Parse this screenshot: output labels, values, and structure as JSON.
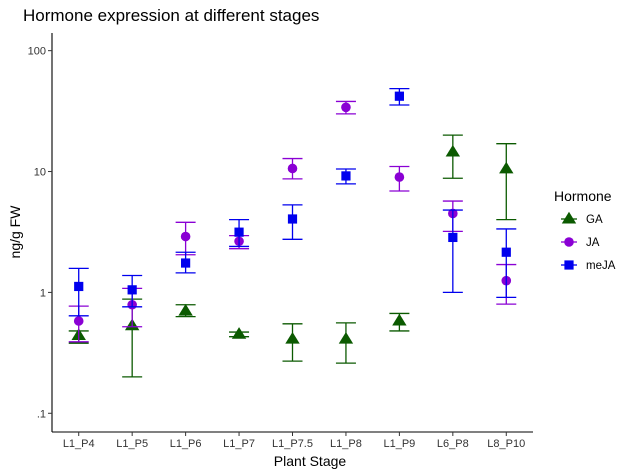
{
  "chart_data": {
    "type": "scatter",
    "title": "Hormone expression at different stages",
    "xlabel": "Plant Stage",
    "ylabel": "ng/g FW",
    "yscale": "log10",
    "ylim": [
      0.07,
      140
    ],
    "yticks": [
      0.1,
      1,
      10,
      100
    ],
    "ytick_labels": [
      ".1",
      "1",
      "10",
      "100"
    ],
    "grid": false,
    "categories": [
      "L1_P4",
      "L1_P5",
      "L1_P6",
      "L1_P7",
      "L1_P7.5",
      "L1_P8",
      "L1_P9",
      "L6_P8",
      "L8_P10"
    ],
    "legend": {
      "title": "Hormone",
      "position": "right"
    },
    "series": [
      {
        "name": "GA",
        "color": "#0b5a00",
        "marker": "triangle",
        "values": [
          0.44,
          0.53,
          0.7,
          0.45,
          0.41,
          0.41,
          0.58,
          14.5,
          10.5
        ],
        "lower": [
          0.38,
          0.2,
          0.63,
          0.43,
          0.27,
          0.26,
          0.48,
          8.8,
          4.0
        ],
        "upper": [
          0.48,
          0.88,
          0.79,
          0.47,
          0.55,
          0.56,
          0.67,
          20.0,
          17.0
        ]
      },
      {
        "name": "JA",
        "color": "#8a00d4",
        "marker": "circle",
        "values": [
          0.58,
          0.79,
          2.9,
          2.65,
          10.6,
          34.0,
          9.0,
          4.5,
          1.25
        ],
        "lower": [
          0.39,
          0.52,
          2.05,
          2.3,
          8.7,
          30.0,
          6.9,
          3.2,
          0.8
        ],
        "upper": [
          0.77,
          1.08,
          3.8,
          2.95,
          12.8,
          38.0,
          11.0,
          5.7,
          1.7
        ]
      },
      {
        "name": "meJA",
        "color": "#0000ee",
        "marker": "square",
        "values": [
          1.12,
          1.05,
          1.75,
          3.15,
          4.05,
          9.2,
          42.0,
          2.85,
          2.15
        ],
        "lower": [
          0.64,
          0.76,
          1.45,
          2.4,
          2.75,
          7.9,
          35.5,
          1.0,
          0.91
        ],
        "upper": [
          1.58,
          1.38,
          2.15,
          4.0,
          5.3,
          10.5,
          48.5,
          4.8,
          3.35
        ]
      }
    ]
  }
}
